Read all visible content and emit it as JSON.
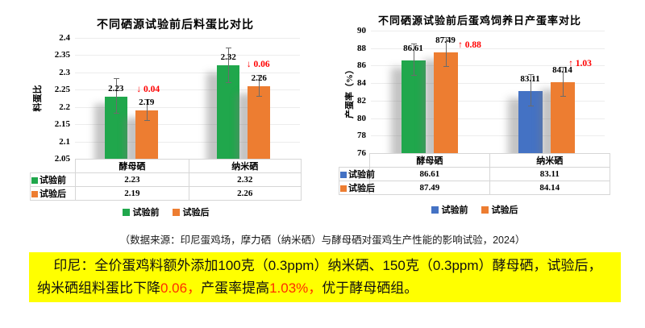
{
  "page": {
    "background": "#FFFFFF"
  },
  "source_note": "（数据来源：印尼蛋鸡场，摩力硒（纳米硒）与酵母硒对蛋鸡生产性能的影响试验，2024）",
  "summary": {
    "background": "#FFFF00",
    "highlight_color": "#FF2D00",
    "segments": [
      {
        "text": "印尼：全价蛋鸡料额外添加100克（0.3ppm）纳米硒、150克（0.3ppm）酵母硒，试验后，纳米硒组料蛋比下降",
        "color": "#111111"
      },
      {
        "text": "0.06，",
        "color": "#FF2D00"
      },
      {
        "text": "产蛋率提高",
        "color": "#111111"
      },
      {
        "text": "1.03%，",
        "color": "#FF2D00"
      },
      {
        "text": "优于酵母硒组。",
        "color": "#111111"
      }
    ]
  },
  "chart_data": [
    {
      "type": "bar",
      "title": "不同硒源试验前后料蛋比对比",
      "ylabel": "料蛋比",
      "categories": [
        "酵母硒",
        "纳米硒"
      ],
      "ylim": [
        2.05,
        2.4
      ],
      "ytick_step": 0.05,
      "yticks": [
        "2.4",
        "2.35",
        "2.3",
        "2.25",
        "2.2",
        "2.15",
        "2.1",
        "2.05"
      ],
      "grid": true,
      "series": [
        {
          "name": "试验前",
          "values": [
            2.23,
            2.32
          ],
          "labels": [
            "2.23",
            "2.32"
          ],
          "errors": [
            0.05,
            0.05
          ],
          "colors": [
            "#20A74C",
            "#20A74C"
          ]
        },
        {
          "name": "试验后",
          "values": [
            2.19,
            2.26
          ],
          "labels": [
            "2.19",
            "2.26"
          ],
          "errors": [
            0.03,
            0.03
          ],
          "colors": [
            "#ED7D31",
            "#ED7D31"
          ]
        }
      ],
      "annotations": [
        {
          "text": "↓ 0.04"
        },
        {
          "text": "↓ 0.06"
        }
      ],
      "annotation_color": "#FF0000",
      "legend": [
        {
          "label": "试验前",
          "color": "#20A74C"
        },
        {
          "label": "试验后",
          "color": "#ED7D31"
        }
      ],
      "legend_position": "bottom"
    },
    {
      "type": "bar",
      "title": "不同硒源试验前后蛋鸡饲养日产蛋率对比",
      "ylabel": "产蛋率（%）",
      "categories": [
        "酵母硒",
        "纳米硒"
      ],
      "ylim": [
        76,
        90
      ],
      "ytick_step": 2,
      "yticks": [
        "90",
        "88",
        "86",
        "84",
        "82",
        "80",
        "78",
        "76"
      ],
      "grid": true,
      "series": [
        {
          "name": "试验前",
          "values": [
            86.61,
            83.11
          ],
          "labels": [
            "86.61",
            "83.11"
          ],
          "errors": [
            1.8,
            1.8
          ],
          "colors": [
            "#20A74C",
            "#4472C4"
          ]
        },
        {
          "name": "试验后",
          "values": [
            87.49,
            84.14
          ],
          "labels": [
            "87.49",
            "84.14"
          ],
          "errors": [
            1.65,
            1.65
          ],
          "colors": [
            "#ED7D31",
            "#ED7D31"
          ]
        }
      ],
      "annotations": [
        {
          "text": "↑ 0.88"
        },
        {
          "text": "↑ 1.03"
        }
      ],
      "annotation_color": "#FF0000",
      "legend": [
        {
          "label": "试验前",
          "color": "#4472C4"
        },
        {
          "label": "试验后",
          "color": "#ED7D31"
        }
      ],
      "legend_position": "bottom"
    }
  ]
}
